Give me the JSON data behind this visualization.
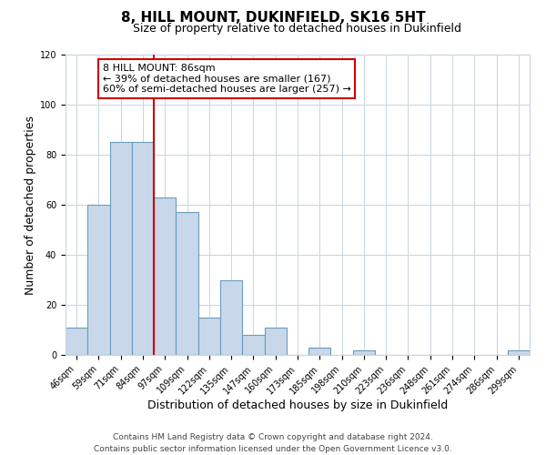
{
  "title": "8, HILL MOUNT, DUKINFIELD, SK16 5HT",
  "subtitle": "Size of property relative to detached houses in Dukinfield",
  "xlabel": "Distribution of detached houses by size in Dukinfield",
  "ylabel": "Number of detached properties",
  "bar_labels": [
    "46sqm",
    "59sqm",
    "71sqm",
    "84sqm",
    "97sqm",
    "109sqm",
    "122sqm",
    "135sqm",
    "147sqm",
    "160sqm",
    "173sqm",
    "185sqm",
    "198sqm",
    "210sqm",
    "223sqm",
    "236sqm",
    "248sqm",
    "261sqm",
    "274sqm",
    "286sqm",
    "299sqm"
  ],
  "bar_values": [
    11,
    60,
    85,
    85,
    63,
    57,
    15,
    30,
    8,
    11,
    0,
    3,
    0,
    2,
    0,
    0,
    0,
    0,
    0,
    0,
    2
  ],
  "bar_color": "#c8d8ea",
  "bar_edge_color": "#6a9cbf",
  "vline_x": 3.5,
  "vline_color": "#cc0000",
  "ylim": [
    0,
    120
  ],
  "yticks": [
    0,
    20,
    40,
    60,
    80,
    100,
    120
  ],
  "annotation_text": "8 HILL MOUNT: 86sqm\n← 39% of detached houses are smaller (167)\n60% of semi-detached houses are larger (257) →",
  "annotation_box_color": "#ffffff",
  "annotation_box_edge": "#cc0000",
  "footer_line1": "Contains HM Land Registry data © Crown copyright and database right 2024.",
  "footer_line2": "Contains public sector information licensed under the Open Government Licence v3.0.",
  "title_fontsize": 11,
  "subtitle_fontsize": 9,
  "xlabel_fontsize": 9,
  "ylabel_fontsize": 9,
  "tick_fontsize": 7,
  "footer_fontsize": 6.5,
  "annotation_fontsize": 8,
  "background_color": "#ffffff",
  "grid_color": "#c8d4de"
}
